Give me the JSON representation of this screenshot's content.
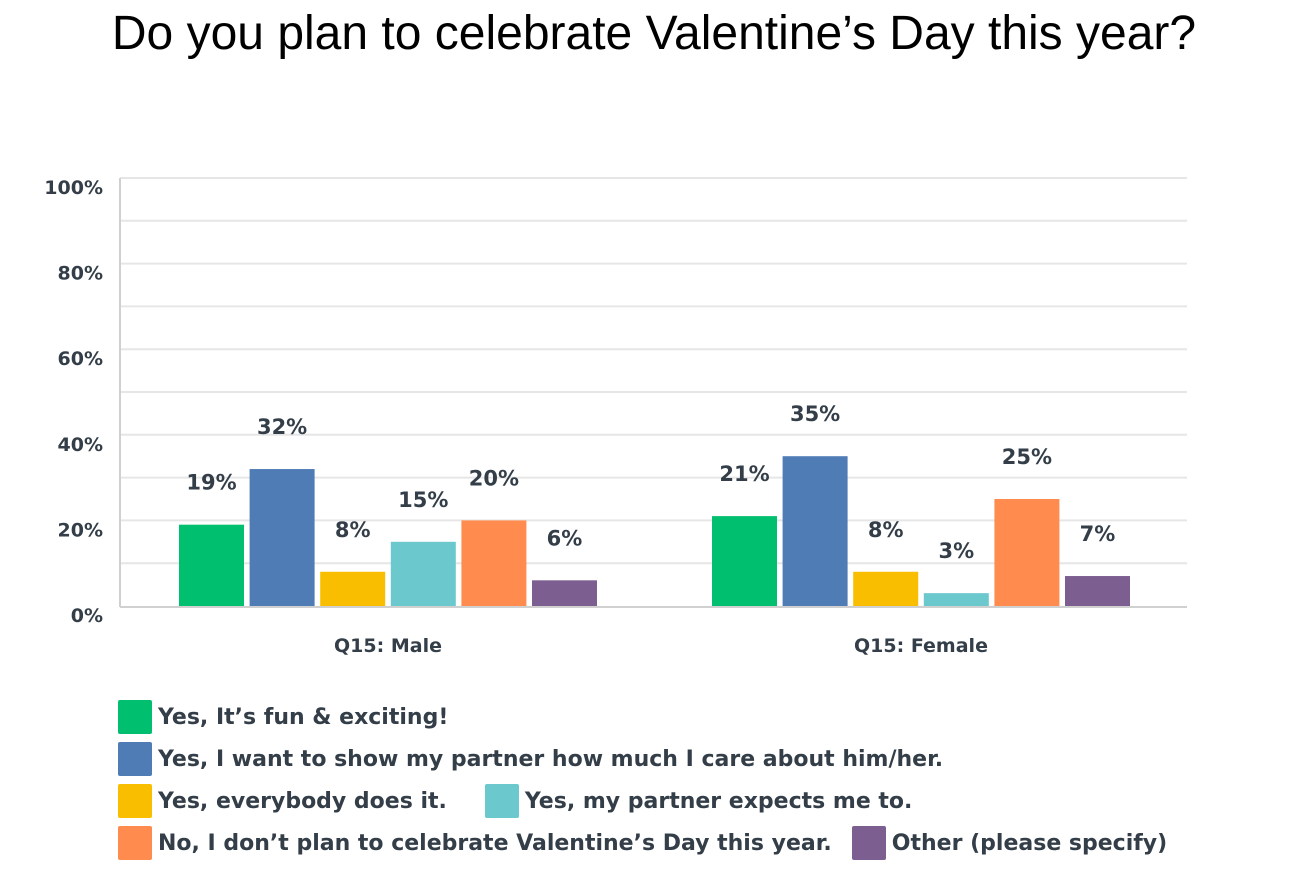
{
  "colors": {
    "series": [
      "#00bf6f",
      "#507cb6",
      "#f9be00",
      "#6bc8cd",
      "#ff8b4f",
      "#7d5e90"
    ],
    "grid": "#e6e6e6",
    "axis": "#d0d0d0",
    "text": "#333e48"
  },
  "chart_data": {
    "type": "bar",
    "title": "Do you plan to celebrate Valentine’s Day this year?",
    "categories": [
      "Q15: Male",
      "Q15: Female"
    ],
    "series": [
      {
        "name": "Yes, It’s fun & exciting!",
        "values": [
          19,
          21
        ],
        "labels": [
          "19%",
          "21%"
        ]
      },
      {
        "name": "Yes, I want to show my partner how much I care about him/her.",
        "values": [
          32,
          35
        ],
        "labels": [
          "32%",
          "35%"
        ]
      },
      {
        "name": "Yes, everybody does it.",
        "values": [
          8,
          8
        ],
        "labels": [
          "8%",
          "8%"
        ]
      },
      {
        "name": "Yes, my partner expects me to.",
        "values": [
          15,
          3
        ],
        "labels": [
          "15%",
          "3%"
        ]
      },
      {
        "name": "No, I don’t plan to celebrate Valentine’s Day this year.",
        "values": [
          20,
          25
        ],
        "labels": [
          "20%",
          "25%"
        ]
      },
      {
        "name": "Other (please specify)",
        "values": [
          6,
          7
        ],
        "labels": [
          "6%",
          "7%"
        ]
      }
    ],
    "ylim": [
      0,
      100
    ],
    "yticks": [
      "0%",
      "20%",
      "40%",
      "60%",
      "80%",
      "100%"
    ],
    "grid": true,
    "legend_position": "bottom"
  }
}
